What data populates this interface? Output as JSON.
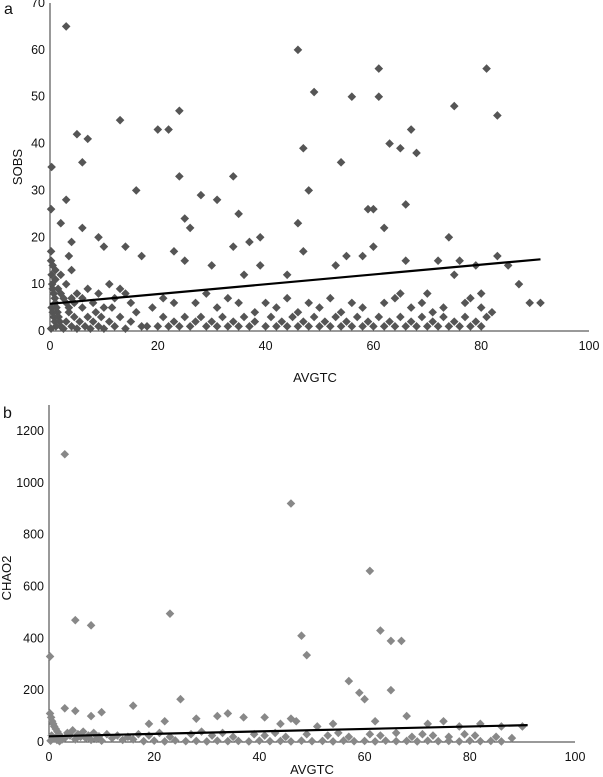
{
  "chart_data": [
    {
      "type": "scatter",
      "panel_label": "a",
      "title": "",
      "xlabel": "AVGTC",
      "ylabel": "SOBS",
      "xlim": [
        0,
        100
      ],
      "ylim": [
        0,
        70
      ],
      "x_ticks": [
        0,
        20,
        40,
        60,
        80,
        100
      ],
      "y_ticks": [
        0,
        10,
        20,
        30,
        40,
        50,
        60,
        70
      ],
      "grid": false,
      "legend": "none",
      "marker": "diamond",
      "marker_color": "#555555",
      "trendline": {
        "x": [
          0,
          91
        ],
        "y": [
          5.8,
          15.3
        ],
        "color": "#000000"
      },
      "points": [
        [
          3,
          65
        ],
        [
          0.3,
          35
        ],
        [
          0.2,
          26
        ],
        [
          3,
          28
        ],
        [
          5,
          42
        ],
        [
          6,
          36
        ],
        [
          7,
          41
        ],
        [
          13,
          45
        ],
        [
          16,
          30
        ],
        [
          20,
          43
        ],
        [
          22,
          43
        ],
        [
          24,
          47
        ],
        [
          24,
          33
        ],
        [
          25,
          24
        ],
        [
          26,
          22
        ],
        [
          28,
          29
        ],
        [
          31,
          28
        ],
        [
          34,
          33
        ],
        [
          35,
          25
        ],
        [
          37,
          19
        ],
        [
          39,
          20
        ],
        [
          46,
          60
        ],
        [
          48,
          30
        ],
        [
          49,
          51
        ],
        [
          47,
          39
        ],
        [
          54,
          36
        ],
        [
          56,
          50
        ],
        [
          61,
          56
        ],
        [
          61,
          50
        ],
        [
          60,
          26
        ],
        [
          59,
          26
        ],
        [
          63,
          40
        ],
        [
          65,
          39
        ],
        [
          66,
          27
        ],
        [
          67,
          43
        ],
        [
          68,
          38
        ],
        [
          75,
          48
        ],
        [
          81,
          56
        ],
        [
          83,
          46
        ],
        [
          46,
          23
        ],
        [
          2,
          23
        ],
        [
          4,
          19
        ],
        [
          6,
          22
        ],
        [
          9,
          20
        ],
        [
          10,
          18
        ],
        [
          14,
          18
        ],
        [
          17,
          16
        ],
        [
          23,
          17
        ],
        [
          25,
          15
        ],
        [
          30,
          14
        ],
        [
          34,
          18
        ],
        [
          36,
          12
        ],
        [
          39,
          14
        ],
        [
          44,
          12
        ],
        [
          47,
          17
        ],
        [
          53,
          14
        ],
        [
          58,
          16
        ],
        [
          60,
          18
        ],
        [
          62,
          22
        ],
        [
          66,
          15
        ],
        [
          72,
          15
        ],
        [
          74,
          20
        ],
        [
          76,
          15
        ],
        [
          79,
          14
        ],
        [
          83,
          16
        ],
        [
          87,
          10
        ],
        [
          89,
          6
        ],
        [
          91,
          6
        ],
        [
          75,
          12
        ],
        [
          70,
          8
        ],
        [
          80,
          8
        ],
        [
          85,
          14
        ],
        [
          55,
          16
        ],
        [
          65,
          8
        ],
        [
          0.2,
          15
        ],
        [
          0.3,
          12
        ],
        [
          0.4,
          10
        ],
        [
          0.5,
          9
        ],
        [
          0.7,
          8
        ],
        [
          0.9,
          7
        ],
        [
          1,
          6
        ],
        [
          1.2,
          5
        ],
        [
          1.4,
          4
        ],
        [
          1.6,
          3
        ],
        [
          1.8,
          2
        ],
        [
          2,
          1
        ],
        [
          0.3,
          5
        ],
        [
          0.5,
          4
        ],
        [
          0.7,
          3
        ],
        [
          0.9,
          2
        ],
        [
          1.1,
          1
        ],
        [
          0.2,
          0.5
        ],
        [
          2.5,
          0.5
        ],
        [
          3,
          2
        ],
        [
          3.5,
          4
        ],
        [
          4,
          1
        ],
        [
          4.5,
          3
        ],
        [
          5,
          0.5
        ],
        [
          5.5,
          2
        ],
        [
          6,
          5
        ],
        [
          6.5,
          1
        ],
        [
          7,
          3
        ],
        [
          7.5,
          0.5
        ],
        [
          8,
          2
        ],
        [
          8.5,
          4
        ],
        [
          9,
          1
        ],
        [
          9.5,
          3
        ],
        [
          10,
          0.5
        ],
        [
          11,
          2
        ],
        [
          11.5,
          5
        ],
        [
          12,
          1
        ],
        [
          13,
          3
        ],
        [
          14,
          0.5
        ],
        [
          15,
          2
        ],
        [
          16,
          4
        ],
        [
          17,
          1
        ],
        [
          0.2,
          17
        ],
        [
          0.5,
          14
        ],
        [
          1,
          11
        ],
        [
          1.5,
          9
        ],
        [
          2,
          8
        ],
        [
          2.5,
          7
        ],
        [
          3,
          6
        ],
        [
          3.5,
          5
        ],
        [
          4,
          7
        ],
        [
          4.5,
          6
        ],
        [
          2,
          12
        ],
        [
          1,
          13
        ],
        [
          3,
          10
        ],
        [
          3.5,
          16
        ],
        [
          4,
          13
        ],
        [
          5,
          8
        ],
        [
          6,
          7
        ],
        [
          7,
          9
        ],
        [
          8,
          6
        ],
        [
          9,
          8
        ],
        [
          10,
          5
        ],
        [
          11,
          10
        ],
        [
          12,
          7
        ],
        [
          13,
          9
        ],
        [
          14,
          8
        ],
        [
          15,
          6
        ],
        [
          18,
          1
        ],
        [
          20,
          1
        ],
        [
          21,
          3
        ],
        [
          22,
          1
        ],
        [
          23,
          2
        ],
        [
          24,
          1
        ],
        [
          25,
          3
        ],
        [
          26,
          1
        ],
        [
          27,
          2
        ],
        [
          28,
          3
        ],
        [
          29,
          1
        ],
        [
          30,
          2
        ],
        [
          31,
          1
        ],
        [
          32,
          3
        ],
        [
          33,
          1
        ],
        [
          34,
          2
        ],
        [
          35,
          1
        ],
        [
          36,
          3
        ],
        [
          37,
          1
        ],
        [
          38,
          2
        ],
        [
          40,
          1
        ],
        [
          41,
          3
        ],
        [
          42,
          1
        ],
        [
          43,
          2
        ],
        [
          44,
          1
        ],
        [
          45,
          3
        ],
        [
          46,
          1
        ],
        [
          47,
          2
        ],
        [
          48,
          1
        ],
        [
          49,
          3
        ],
        [
          50,
          1
        ],
        [
          51,
          2
        ],
        [
          52,
          1
        ],
        [
          53,
          3
        ],
        [
          54,
          1
        ],
        [
          55,
          2
        ],
        [
          56,
          1
        ],
        [
          57,
          3
        ],
        [
          58,
          1
        ],
        [
          59,
          2
        ],
        [
          60,
          1
        ],
        [
          61,
          3
        ],
        [
          62,
          1
        ],
        [
          63,
          2
        ],
        [
          64,
          1
        ],
        [
          65,
          3
        ],
        [
          66,
          1
        ],
        [
          67,
          2
        ],
        [
          68,
          1
        ],
        [
          69,
          3
        ],
        [
          70,
          1
        ],
        [
          71,
          2
        ],
        [
          72,
          1
        ],
        [
          73,
          3
        ],
        [
          74,
          1
        ],
        [
          75,
          2
        ],
        [
          76,
          1
        ],
        [
          77,
          3
        ],
        [
          78,
          1
        ],
        [
          79,
          2
        ],
        [
          80,
          1
        ],
        [
          81,
          3
        ],
        [
          19,
          5
        ],
        [
          21,
          7
        ],
        [
          23,
          6
        ],
        [
          27,
          6
        ],
        [
          29,
          8
        ],
        [
          31,
          5
        ],
        [
          33,
          7
        ],
        [
          35,
          6
        ],
        [
          38,
          4
        ],
        [
          40,
          6
        ],
        [
          42,
          5
        ],
        [
          44,
          7
        ],
        [
          46,
          4
        ],
        [
          48,
          6
        ],
        [
          50,
          5
        ],
        [
          52,
          7
        ],
        [
          54,
          4
        ],
        [
          56,
          6
        ],
        [
          58,
          5
        ],
        [
          62,
          6
        ],
        [
          64,
          7
        ],
        [
          67,
          5
        ],
        [
          69,
          6
        ],
        [
          71,
          4
        ],
        [
          73,
          5
        ],
        [
          77,
          6
        ],
        [
          78,
          7
        ],
        [
          80,
          5
        ],
        [
          82,
          4
        ]
      ]
    },
    {
      "type": "scatter",
      "panel_label": "b",
      "title": "",
      "xlabel": "AVGTC",
      "ylabel": "CHAO2",
      "xlim": [
        0,
        100
      ],
      "ylim": [
        0,
        1300
      ],
      "x_ticks": [
        0,
        20,
        40,
        60,
        80,
        100
      ],
      "y_ticks": [
        0,
        200,
        400,
        600,
        800,
        1000,
        1200
      ],
      "grid": false,
      "legend": "none",
      "marker": "diamond",
      "marker_color": "#888888",
      "trendline": {
        "x": [
          0,
          91
        ],
        "y": [
          22,
          65
        ],
        "color": "#000000"
      },
      "points": [
        [
          3,
          1110
        ],
        [
          0.2,
          330
        ],
        [
          5,
          470
        ],
        [
          8,
          450
        ],
        [
          23,
          495
        ],
        [
          46,
          920
        ],
        [
          48,
          410
        ],
        [
          49,
          335
        ],
        [
          61,
          660
        ],
        [
          63,
          430
        ],
        [
          65,
          390
        ],
        [
          67,
          390
        ],
        [
          60,
          165
        ],
        [
          57,
          235
        ],
        [
          59,
          190
        ],
        [
          65,
          200
        ],
        [
          46,
          90
        ],
        [
          3,
          130
        ],
        [
          5,
          120
        ],
        [
          8,
          100
        ],
        [
          10,
          115
        ],
        [
          16,
          140
        ],
        [
          19,
          70
        ],
        [
          22,
          80
        ],
        [
          25,
          165
        ],
        [
          28,
          90
        ],
        [
          32,
          100
        ],
        [
          34,
          110
        ],
        [
          37,
          95
        ],
        [
          41,
          95
        ],
        [
          44,
          70
        ],
        [
          47,
          80
        ],
        [
          51,
          60
        ],
        [
          54,
          70
        ],
        [
          62,
          80
        ],
        [
          68,
          100
        ],
        [
          75,
          80
        ],
        [
          82,
          70
        ],
        [
          86,
          60
        ],
        [
          90,
          60
        ],
        [
          72,
          70
        ],
        [
          78,
          60
        ],
        [
          0.2,
          110
        ],
        [
          0.4,
          95
        ],
        [
          0.6,
          80
        ],
        [
          0.8,
          70
        ],
        [
          1,
          60
        ],
        [
          1.3,
          50
        ],
        [
          1.6,
          40
        ],
        [
          1.9,
          30
        ],
        [
          2.2,
          20
        ],
        [
          2.5,
          10
        ],
        [
          0.5,
          25
        ],
        [
          1,
          15
        ],
        [
          1.5,
          8
        ],
        [
          0.3,
          5
        ],
        [
          2,
          3
        ],
        [
          3,
          15
        ],
        [
          3.5,
          35
        ],
        [
          4,
          25
        ],
        [
          4.5,
          45
        ],
        [
          5,
          10
        ],
        [
          5.5,
          30
        ],
        [
          6,
          20
        ],
        [
          6.5,
          40
        ],
        [
          7,
          15
        ],
        [
          7.5,
          25
        ],
        [
          8,
          8
        ],
        [
          8.5,
          35
        ],
        [
          9,
          12
        ],
        [
          9.5,
          22
        ],
        [
          10,
          5
        ],
        [
          11,
          30
        ],
        [
          12,
          15
        ],
        [
          13,
          25
        ],
        [
          14,
          8
        ],
        [
          15,
          20
        ],
        [
          16,
          10
        ],
        [
          17,
          30
        ],
        [
          18,
          3
        ],
        [
          20,
          5
        ],
        [
          22,
          2
        ],
        [
          24,
          6
        ],
        [
          26,
          3
        ],
        [
          28,
          4
        ],
        [
          30,
          2
        ],
        [
          32,
          5
        ],
        [
          34,
          3
        ],
        [
          36,
          4
        ],
        [
          38,
          2
        ],
        [
          40,
          5
        ],
        [
          42,
          3
        ],
        [
          44,
          4
        ],
        [
          46,
          2
        ],
        [
          48,
          5
        ],
        [
          50,
          3
        ],
        [
          52,
          4
        ],
        [
          54,
          2
        ],
        [
          56,
          5
        ],
        [
          58,
          3
        ],
        [
          60,
          4
        ],
        [
          62,
          2
        ],
        [
          64,
          5
        ],
        [
          66,
          3
        ],
        [
          68,
          4
        ],
        [
          70,
          2
        ],
        [
          72,
          5
        ],
        [
          74,
          3
        ],
        [
          76,
          4
        ],
        [
          78,
          2
        ],
        [
          80,
          5
        ],
        [
          82,
          3
        ],
        [
          84,
          4
        ],
        [
          86,
          2
        ],
        [
          19,
          25
        ],
        [
          21,
          35
        ],
        [
          23,
          20
        ],
        [
          27,
          30
        ],
        [
          29,
          40
        ],
        [
          31,
          25
        ],
        [
          33,
          35
        ],
        [
          35,
          20
        ],
        [
          39,
          30
        ],
        [
          41,
          25
        ],
        [
          43,
          35
        ],
        [
          45,
          20
        ],
        [
          49,
          30
        ],
        [
          53,
          25
        ],
        [
          55,
          35
        ],
        [
          57,
          20
        ],
        [
          61,
          30
        ],
        [
          63,
          25
        ],
        [
          66,
          35
        ],
        [
          69,
          20
        ],
        [
          71,
          30
        ],
        [
          73,
          25
        ],
        [
          76,
          20
        ],
        [
          79,
          30
        ],
        [
          81,
          25
        ],
        [
          85,
          20
        ],
        [
          88,
          15
        ]
      ]
    }
  ]
}
